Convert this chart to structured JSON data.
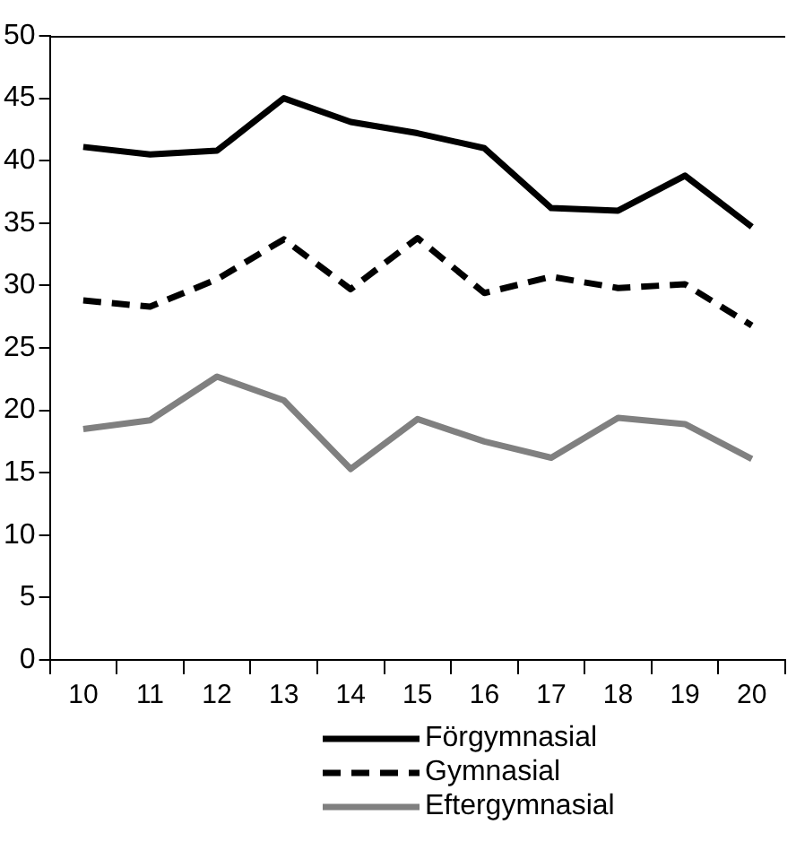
{
  "chart_data": {
    "type": "line",
    "categories": [
      "10",
      "11",
      "12",
      "13",
      "14",
      "15",
      "16",
      "17",
      "18",
      "19",
      "20"
    ],
    "series": [
      {
        "name": "Förgymnasial",
        "color": "#000000",
        "line_style": "solid",
        "values": [
          41.1,
          40.5,
          40.8,
          45.0,
          43.1,
          42.2,
          41.0,
          36.2,
          36.0,
          38.8,
          34.7
        ]
      },
      {
        "name": "Gymnasial",
        "color": "#000000",
        "line_style": "dashed",
        "values": [
          28.8,
          28.3,
          30.5,
          33.7,
          29.7,
          33.8,
          29.4,
          30.7,
          29.8,
          30.1,
          26.8
        ]
      },
      {
        "name": "Eftergymnasial",
        "color": "#808080",
        "line_style": "solid",
        "values": [
          18.5,
          19.2,
          22.7,
          20.8,
          15.3,
          19.3,
          17.5,
          16.2,
          19.4,
          18.9,
          16.1
        ]
      }
    ],
    "ylim": [
      0,
      50
    ],
    "yticks": [
      0,
      5,
      10,
      15,
      20,
      25,
      30,
      35,
      40,
      45,
      50
    ],
    "grid": false,
    "legend": "bottom",
    "marker": "none"
  }
}
